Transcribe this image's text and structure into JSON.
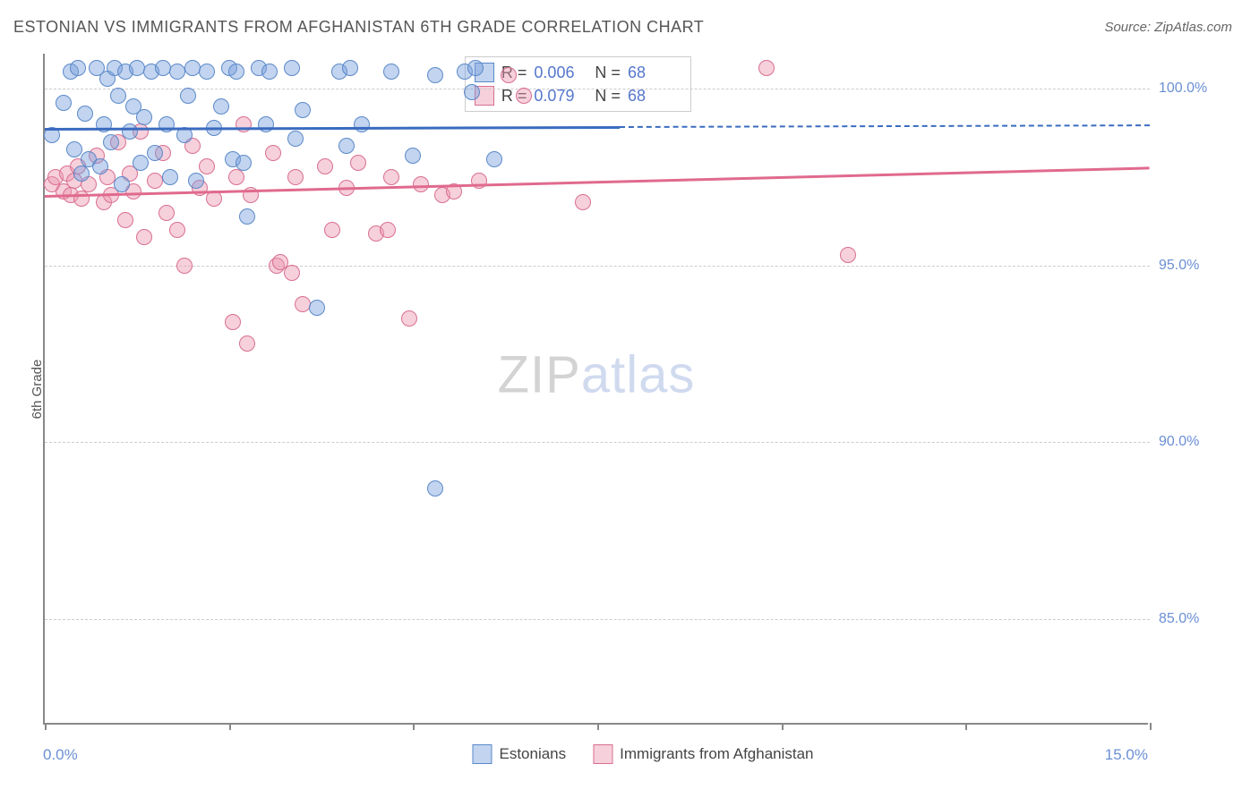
{
  "header": {
    "title": "ESTONIAN VS IMMIGRANTS FROM AFGHANISTAN 6TH GRADE CORRELATION CHART",
    "source": "Source: ZipAtlas.com"
  },
  "axes": {
    "y_title": "6th Grade",
    "x_min_label": "0.0%",
    "x_max_label": "15.0%",
    "y_ticks": [
      {
        "label": "85.0%",
        "value": 85.0
      },
      {
        "label": "90.0%",
        "value": 90.0
      },
      {
        "label": "95.0%",
        "value": 95.0
      },
      {
        "label": "100.0%",
        "value": 100.0
      }
    ],
    "x_minor_ticks": [
      0,
      2.5,
      5.0,
      7.5,
      10.0,
      12.5,
      15.0
    ]
  },
  "plot": {
    "xlim": [
      0,
      15
    ],
    "ylim": [
      82,
      101
    ],
    "grid_color": "#cccccc",
    "axis_color": "#888888",
    "background": "#ffffff"
  },
  "watermark": {
    "part1": "ZIP",
    "part2": "atlas"
  },
  "series": {
    "estonians": {
      "label": "Estonians",
      "fill": "rgba(120,160,220,0.45)",
      "stroke": "#5b89c9",
      "swatch_fill": "rgba(120,160,220,0.45)",
      "swatch_stroke": "#5b89c9",
      "R_label": "R =",
      "R_value": "0.006",
      "N_label": "N =",
      "N_value": "68",
      "trend": {
        "x1": 0,
        "y1": 98.9,
        "x2": 15,
        "y2": 99.0,
        "dash_x_start": 7.8,
        "color": "#3a6bbf"
      },
      "points": [
        [
          0.1,
          98.7
        ],
        [
          0.25,
          99.6
        ],
        [
          0.35,
          100.5
        ],
        [
          0.4,
          98.3
        ],
        [
          0.45,
          100.6
        ],
        [
          0.5,
          97.6
        ],
        [
          0.55,
          99.3
        ],
        [
          0.6,
          98.0
        ],
        [
          0.7,
          100.6
        ],
        [
          0.75,
          97.8
        ],
        [
          0.8,
          99.0
        ],
        [
          0.85,
          100.3
        ],
        [
          0.9,
          98.5
        ],
        [
          0.95,
          100.6
        ],
        [
          1.0,
          99.8
        ],
        [
          1.05,
          97.3
        ],
        [
          1.1,
          100.5
        ],
        [
          1.15,
          98.8
        ],
        [
          1.2,
          99.5
        ],
        [
          1.25,
          100.6
        ],
        [
          1.3,
          97.9
        ],
        [
          1.35,
          99.2
        ],
        [
          1.45,
          100.5
        ],
        [
          1.5,
          98.2
        ],
        [
          1.6,
          100.6
        ],
        [
          1.65,
          99.0
        ],
        [
          1.7,
          97.5
        ],
        [
          1.8,
          100.5
        ],
        [
          1.9,
          98.7
        ],
        [
          1.95,
          99.8
        ],
        [
          2.0,
          100.6
        ],
        [
          2.05,
          97.4
        ],
        [
          2.2,
          100.5
        ],
        [
          2.3,
          98.9
        ],
        [
          2.4,
          99.5
        ],
        [
          2.5,
          100.6
        ],
        [
          2.55,
          98.0
        ],
        [
          2.6,
          100.5
        ],
        [
          2.7,
          97.9
        ],
        [
          2.75,
          96.4
        ],
        [
          2.9,
          100.6
        ],
        [
          3.0,
          99.0
        ],
        [
          3.05,
          100.5
        ],
        [
          3.35,
          100.6
        ],
        [
          3.4,
          98.6
        ],
        [
          3.5,
          99.4
        ],
        [
          3.7,
          93.8
        ],
        [
          4.0,
          100.5
        ],
        [
          4.1,
          98.4
        ],
        [
          4.15,
          100.6
        ],
        [
          4.3,
          99.0
        ],
        [
          4.7,
          100.5
        ],
        [
          5.0,
          98.1
        ],
        [
          5.3,
          88.7
        ],
        [
          5.7,
          100.5
        ],
        [
          5.8,
          99.9
        ],
        [
          5.85,
          100.6
        ],
        [
          6.1,
          98.0
        ],
        [
          5.3,
          100.4
        ]
      ]
    },
    "afghanistan": {
      "label": "Immigrants from Afghanistan",
      "fill": "rgba(235,150,175,0.45)",
      "stroke": "#d96f91",
      "swatch_fill": "rgba(235,150,175,0.45)",
      "swatch_stroke": "#d96f91",
      "R_label": "R =",
      "R_value": "0.079",
      "N_label": "N =",
      "N_value": "68",
      "trend": {
        "x1": 0,
        "y1": 97.0,
        "x2": 15,
        "y2": 97.8,
        "color": "#e06a8e"
      },
      "points": [
        [
          0.1,
          97.3
        ],
        [
          0.15,
          97.5
        ],
        [
          0.25,
          97.1
        ],
        [
          0.3,
          97.6
        ],
        [
          0.35,
          97.0
        ],
        [
          0.4,
          97.4
        ],
        [
          0.45,
          97.8
        ],
        [
          0.5,
          96.9
        ],
        [
          0.6,
          97.3
        ],
        [
          0.7,
          98.1
        ],
        [
          0.8,
          96.8
        ],
        [
          0.85,
          97.5
        ],
        [
          0.9,
          97.0
        ],
        [
          1.0,
          98.5
        ],
        [
          1.1,
          96.3
        ],
        [
          1.15,
          97.6
        ],
        [
          1.2,
          97.1
        ],
        [
          1.3,
          98.8
        ],
        [
          1.35,
          95.8
        ],
        [
          1.5,
          97.4
        ],
        [
          1.6,
          98.2
        ],
        [
          1.65,
          96.5
        ],
        [
          1.8,
          96.0
        ],
        [
          1.9,
          95.0
        ],
        [
          2.0,
          98.4
        ],
        [
          2.1,
          97.2
        ],
        [
          2.2,
          97.8
        ],
        [
          2.3,
          96.9
        ],
        [
          2.55,
          93.4
        ],
        [
          2.6,
          97.5
        ],
        [
          2.7,
          99.0
        ],
        [
          2.75,
          92.8
        ],
        [
          2.8,
          97.0
        ],
        [
          3.1,
          98.2
        ],
        [
          3.15,
          95.0
        ],
        [
          3.2,
          95.1
        ],
        [
          3.35,
          94.8
        ],
        [
          3.4,
          97.5
        ],
        [
          3.5,
          93.9
        ],
        [
          3.8,
          97.8
        ],
        [
          3.9,
          96.0
        ],
        [
          4.1,
          97.2
        ],
        [
          4.25,
          97.9
        ],
        [
          4.5,
          95.9
        ],
        [
          4.65,
          96.0
        ],
        [
          4.7,
          97.5
        ],
        [
          4.95,
          93.5
        ],
        [
          5.1,
          97.3
        ],
        [
          5.4,
          97.0
        ],
        [
          5.55,
          97.1
        ],
        [
          5.9,
          97.4
        ],
        [
          6.3,
          100.4
        ],
        [
          6.5,
          99.8
        ],
        [
          7.3,
          96.8
        ],
        [
          9.8,
          100.6
        ],
        [
          10.9,
          95.3
        ]
      ]
    }
  },
  "legend_bottom": {
    "item1": "Estonians",
    "item2": "Immigrants from Afghanistan"
  }
}
